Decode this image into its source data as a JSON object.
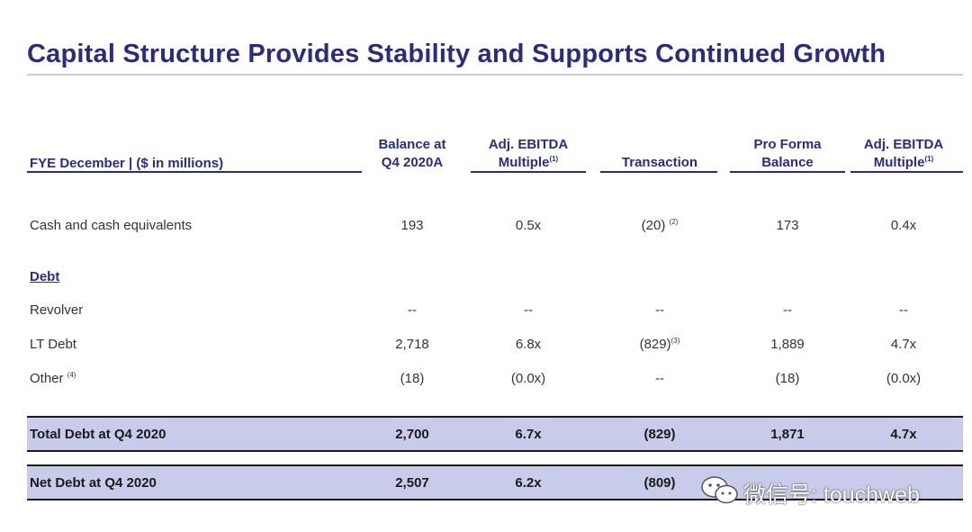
{
  "title": "Capital Structure Provides Stability and Supports Continued Growth",
  "headers": {
    "label": "FYE December | ($ in millions)",
    "balance": {
      "line1": "Balance at",
      "line2": "Q4 2020A"
    },
    "ebitda1": {
      "line1": "Adj. EBITDA",
      "line2": "Multiple",
      "note": "(1)"
    },
    "transaction": "Transaction",
    "proforma": {
      "line1": "Pro Forma",
      "line2": "Balance"
    },
    "ebitda2": {
      "line1": "Adj. EBITDA",
      "line2": "Multiple",
      "note": "(1)"
    }
  },
  "rows": {
    "cash": {
      "label": "Cash and cash equivalents",
      "balance": "193",
      "mult1": "0.5x",
      "transaction": "(20)",
      "transaction_note": "(2)",
      "proforma": "173",
      "mult2": "0.4x"
    },
    "debt_heading": "Debt",
    "revolver": {
      "label": "Revolver",
      "balance": "--",
      "mult1": "--",
      "transaction": "--",
      "proforma": "--",
      "mult2": "--"
    },
    "lt_debt": {
      "label": "LT Debt",
      "balance": "2,718",
      "mult1": "6.8x",
      "transaction": "(829)",
      "transaction_note": "(3)",
      "proforma": "1,889",
      "mult2": "4.7x"
    },
    "other": {
      "label": "Other",
      "label_note": "(4)",
      "balance": "(18)",
      "mult1": "(0.0x)",
      "transaction": "--",
      "proforma": "(18)",
      "mult2": "(0.0x)"
    },
    "total_debt": {
      "label": "Total Debt at Q4 2020",
      "balance": "2,700",
      "mult1": "6.7x",
      "transaction": "(829)",
      "proforma": "1,871",
      "mult2": "4.7x"
    },
    "net_debt": {
      "label": "Net Debt at Q4 2020",
      "balance": "2,507",
      "mult1": "6.2x",
      "transaction": "(809)",
      "proforma": "",
      "mult2": ""
    }
  },
  "watermark": {
    "icon": "wechat-icon",
    "text": "微信号: touchweb"
  }
}
